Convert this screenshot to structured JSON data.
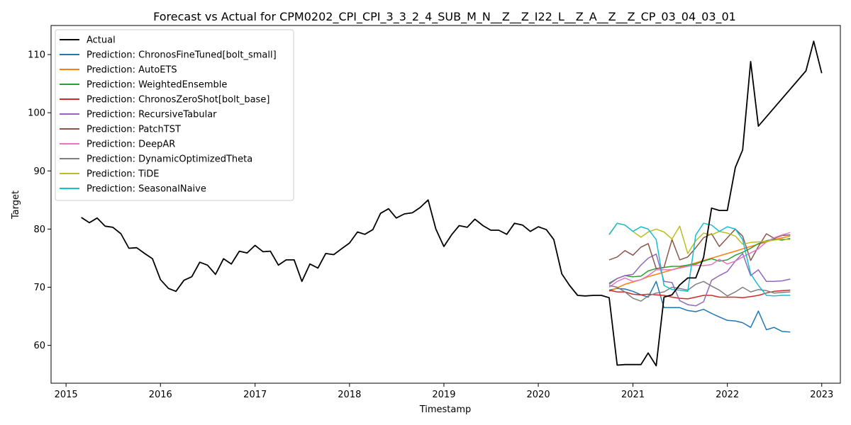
{
  "chart_data": {
    "type": "line",
    "title": "Forecast vs Actual for CPM0202_CPI_CPI_3_3_2_4_SUB_M_N__Z__Z_I22_L__Z_A__Z__Z_CP_03_04_03_01",
    "xlabel": "Timestamp",
    "ylabel": "Target",
    "xlim": [
      "2014-11-04",
      "2023-03-14"
    ],
    "ylim": [
      53.5,
      115
    ],
    "x_ticks": [
      "2015",
      "2016",
      "2017",
      "2018",
      "2019",
      "2020",
      "2021",
      "2022",
      "2023"
    ],
    "y_ticks": [
      60,
      70,
      80,
      90,
      100,
      110
    ],
    "grid": false,
    "legend_position": "upper-left",
    "colors": {
      "Actual": "#000000",
      "Prediction: ChronosFineTuned[bolt_small]": "#1f77b4",
      "Prediction: AutoETS": "#ff7f0e",
      "Prediction: WeightedEnsemble": "#2ca02c",
      "Prediction: ChronosZeroShot[bolt_base]": "#d62728",
      "Prediction: RecursiveTabular": "#9467bd",
      "Prediction: PatchTST": "#8c564b",
      "Prediction: DeepAR": "#e377c2",
      "Prediction: DynamicOptimizedTheta": "#7f7f7f",
      "Prediction: TiDE": "#bcbd22",
      "Prediction: SeasonalNaive": "#17becf"
    },
    "series": [
      {
        "name": "Actual",
        "x": [
          "2015-03-01",
          "2015-04-01",
          "2015-05-01",
          "2015-06-01",
          "2015-07-01",
          "2015-08-01",
          "2015-09-01",
          "2015-10-01",
          "2015-11-01",
          "2015-12-01",
          "2016-01-01",
          "2016-02-01",
          "2016-03-01",
          "2016-04-01",
          "2016-05-01",
          "2016-06-01",
          "2016-07-01",
          "2016-08-01",
          "2016-09-01",
          "2016-10-01",
          "2016-11-01",
          "2016-12-01",
          "2017-01-01",
          "2017-02-01",
          "2017-03-01",
          "2017-04-01",
          "2017-05-01",
          "2017-06-01",
          "2017-07-01",
          "2017-08-01",
          "2017-09-01",
          "2017-10-01",
          "2017-11-01",
          "2017-12-01",
          "2018-01-01",
          "2018-02-01",
          "2018-03-01",
          "2018-04-01",
          "2018-05-01",
          "2018-06-01",
          "2018-07-01",
          "2018-08-01",
          "2018-09-01",
          "2018-10-01",
          "2018-11-01",
          "2018-12-01",
          "2019-01-01",
          "2019-02-01",
          "2019-03-01",
          "2019-04-01",
          "2019-05-01",
          "2019-06-01",
          "2019-07-01",
          "2019-08-01",
          "2019-09-01",
          "2019-10-01",
          "2019-11-01",
          "2019-12-01",
          "2020-01-01",
          "2020-02-01",
          "2020-03-01",
          "2020-04-01",
          "2020-05-01",
          "2020-06-01",
          "2020-07-01",
          "2020-08-01",
          "2020-09-01",
          "2020-10-01",
          "2020-11-01",
          "2020-12-01",
          "2021-01-01",
          "2021-02-01",
          "2021-03-01",
          "2021-04-01",
          "2021-05-01",
          "2021-06-01",
          "2021-07-01",
          "2021-08-01",
          "2021-09-01",
          "2021-10-01",
          "2021-11-01",
          "2021-12-01",
          "2022-01-01",
          "2022-02-01",
          "2022-03-01",
          "2022-04-01",
          "2022-05-01",
          "2022-11-01",
          "2022-12-01"
        ],
        "values": [
          82.0,
          81.1,
          81.9,
          80.5,
          80.3,
          79.2,
          76.7,
          76.8,
          75.8,
          74.9,
          71.3,
          69.8,
          69.3,
          71.2,
          71.8,
          74.3,
          73.8,
          72.2,
          74.9,
          74.0,
          76.2,
          75.9,
          77.2,
          76.1,
          76.2,
          73.8,
          74.7,
          74.7,
          71.0,
          74.0,
          73.3,
          75.8,
          75.6,
          76.6,
          77.6,
          79.5,
          79.1,
          79.9,
          82.7,
          83.5,
          81.9,
          82.6,
          82.8,
          83.7,
          85.0,
          80.0,
          77.0,
          79.1,
          80.6,
          80.3,
          81.7,
          80.6,
          79.8,
          79.8,
          79.1,
          81.0,
          80.7,
          79.6,
          80.4,
          79.9,
          78.2,
          72.3,
          70.3,
          68.6,
          68.5,
          68.6,
          68.6,
          68.2,
          56.6,
          56.7,
          56.7,
          56.7,
          58.7,
          56.5,
          68.3,
          68.7,
          70.4,
          71.6,
          71.6,
          75.1,
          83.6,
          83.2,
          83.2,
          90.6,
          93.6,
          108.8,
          97.7,
          107.2,
          112.3
        ]
      },
      {
        "name": "Actual-tail",
        "x": [
          "2022-05-01",
          "2022-11-01",
          "2022-12-01",
          "2023-01-01"
        ],
        "values": [
          97.7,
          107.2,
          112.3,
          106.8
        ]
      }
    ],
    "forecast_x": [
      "2020-10-01",
      "2020-11-01",
      "2020-12-01",
      "2021-01-01",
      "2021-02-01",
      "2021-03-01",
      "2021-04-01",
      "2021-05-01",
      "2021-06-01",
      "2021-07-01",
      "2021-08-01",
      "2021-09-01",
      "2021-10-01",
      "2021-11-01",
      "2021-12-01",
      "2022-01-01",
      "2022-02-01",
      "2022-03-01",
      "2022-04-01",
      "2022-05-01",
      "2022-06-01",
      "2022-07-01",
      "2022-08-01",
      "2022-09-01"
    ],
    "predictions": [
      {
        "name": "Prediction: ChronosFineTuned[bolt_small]",
        "values": [
          69.5,
          69.8,
          69.7,
          69.3,
          68.7,
          68.3,
          71.0,
          66.5,
          66.5,
          66.5,
          66.0,
          65.8,
          66.2,
          65.5,
          64.9,
          64.3,
          64.2,
          63.9,
          63.1,
          65.9,
          62.7,
          63.1,
          62.4,
          62.3
        ]
      },
      {
        "name": "Prediction: AutoETS",
        "values": [
          69.3,
          69.9,
          70.5,
          70.9,
          71.3,
          71.8,
          72.2,
          72.6,
          73.0,
          73.4,
          73.8,
          74.2,
          74.6,
          75.0,
          75.4,
          75.8,
          76.2,
          76.6,
          77.0,
          77.4,
          77.8,
          78.2,
          78.5,
          78.8
        ]
      },
      {
        "name": "Prediction: WeightedEnsemble",
        "values": [
          70.7,
          71.5,
          72.0,
          71.8,
          71.9,
          72.8,
          73.2,
          73.4,
          73.6,
          73.6,
          73.8,
          74.0,
          74.5,
          74.9,
          74.5,
          74.7,
          75.5,
          76.0,
          76.7,
          77.5,
          78.0,
          78.3,
          78.1,
          78.4
        ]
      },
      {
        "name": "Prediction: ChronosZeroShot[bolt_base]",
        "values": [
          69.5,
          69.2,
          69.2,
          68.8,
          68.7,
          68.8,
          68.7,
          68.6,
          68.3,
          68.1,
          68.0,
          68.3,
          68.6,
          68.6,
          68.3,
          68.3,
          68.3,
          68.2,
          68.4,
          68.6,
          69.0,
          69.3,
          69.4,
          69.5
        ]
      },
      {
        "name": "Prediction: RecursiveTabular",
        "values": [
          70.5,
          71.5,
          72.0,
          72.2,
          73.8,
          75.0,
          75.7,
          71.0,
          70.8,
          67.7,
          67.0,
          66.8,
          67.5,
          71.2,
          72.0,
          72.7,
          74.5,
          75.8,
          72.0,
          73.0,
          71.0,
          71.0,
          71.1,
          71.4
        ]
      },
      {
        "name": "Prediction: PatchTST",
        "values": [
          74.7,
          75.2,
          76.3,
          75.5,
          76.9,
          77.5,
          73.2,
          73.4,
          78.2,
          74.7,
          75.2,
          76.8,
          78.5,
          79.2,
          77.0,
          78.5,
          80.0,
          78.8,
          74.6,
          77.0,
          79.2,
          78.4,
          78.9,
          79.0
        ]
      },
      {
        "name": "Prediction: DeepAR",
        "values": [
          70.0,
          71.0,
          71.6,
          71.0,
          71.3,
          72.0,
          73.0,
          73.0,
          73.0,
          73.3,
          73.6,
          73.8,
          73.7,
          73.9,
          74.8,
          74.0,
          74.5,
          75.2,
          75.9,
          76.6,
          77.8,
          78.5,
          79.0,
          79.4
        ]
      },
      {
        "name": "Prediction: DynamicOptimizedTheta",
        "values": [
          70.3,
          70.0,
          69.2,
          68.1,
          67.6,
          68.5,
          69.0,
          69.2,
          70.0,
          69.8,
          69.5,
          70.5,
          71.0,
          70.2,
          69.5,
          68.5,
          69.2,
          70.0,
          69.2,
          69.6,
          69.4,
          69.0,
          69.1,
          69.2
        ]
      },
      {
        "name": "Prediction: TiDE",
        "values": [
          79.0,
          81.0,
          80.7,
          79.6,
          78.6,
          79.5,
          80.0,
          79.5,
          78.3,
          80.5,
          75.8,
          78.0,
          79.3,
          79.0,
          79.6,
          79.3,
          78.8,
          77.4,
          77.7,
          77.8,
          77.9,
          78.1,
          78.3,
          78.2
        ]
      },
      {
        "name": "Prediction: SeasonalNaive",
        "values": [
          79.1,
          81.0,
          80.7,
          79.6,
          80.4,
          80.0,
          78.2,
          70.3,
          69.6,
          69.5,
          69.3,
          79.0,
          81.0,
          80.7,
          79.6,
          80.4,
          80.0,
          78.2,
          72.3,
          70.3,
          68.6,
          68.5,
          68.6,
          68.6
        ]
      }
    ]
  }
}
